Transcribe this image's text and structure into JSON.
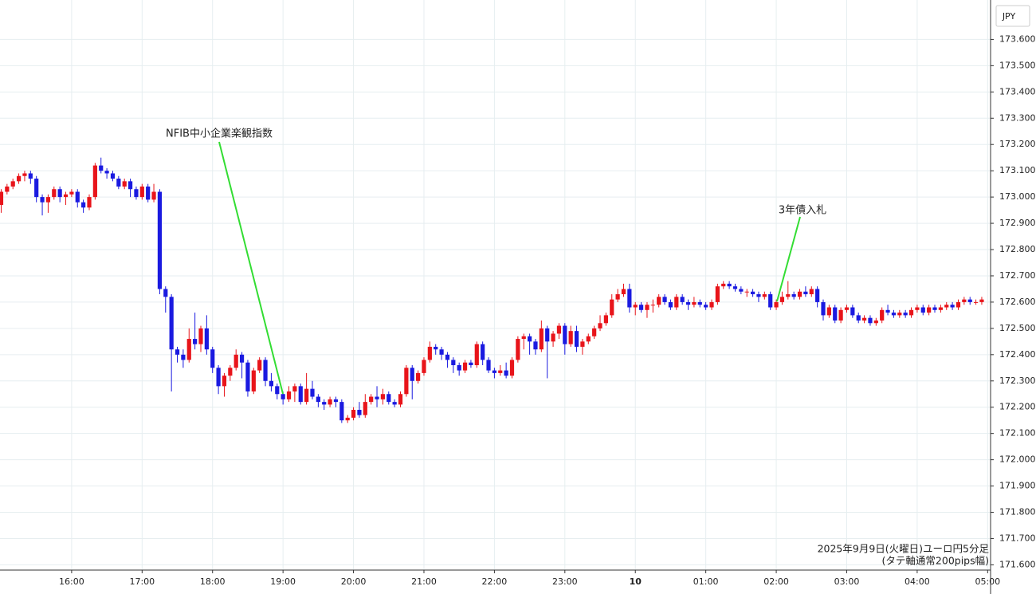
{
  "chart_data": {
    "type": "candlestick",
    "axis_unit": "JPY",
    "footer": [
      "2025年9月9日(火曜日)ユーロ円5分足",
      "(タテ軸通常200pips幅)"
    ],
    "annotations": [
      {
        "text": "NFIB中小企業楽観指数"
      },
      {
        "text": "3年債入札"
      }
    ],
    "up_color": "#e8141a",
    "down_color": "#1a1ae0",
    "annotation_color": "#33dd33",
    "grid": true,
    "ylim": [
      171.58,
      173.75
    ],
    "yticks": [
      {
        "value": 171.6,
        "label": "171.600"
      },
      {
        "value": 171.7,
        "label": "171.700"
      },
      {
        "value": 171.8,
        "label": "171.800"
      },
      {
        "value": 171.9,
        "label": "171.900"
      },
      {
        "value": 172.0,
        "label": "172.000"
      },
      {
        "value": 172.1,
        "label": "172.100"
      },
      {
        "value": 172.2,
        "label": "172.200"
      },
      {
        "value": 172.3,
        "label": "172.300"
      },
      {
        "value": 172.4,
        "label": "172.400"
      },
      {
        "value": 172.5,
        "label": "172.500"
      },
      {
        "value": 172.6,
        "label": "172.600"
      },
      {
        "value": 172.7,
        "label": "172.700"
      },
      {
        "value": 172.8,
        "label": "172.800"
      },
      {
        "value": 172.9,
        "label": "172.900"
      },
      {
        "value": 173.0,
        "label": "173.000"
      },
      {
        "value": 173.1,
        "label": "173.100"
      },
      {
        "value": 173.2,
        "label": "173.200"
      },
      {
        "value": 173.3,
        "label": "173.300"
      },
      {
        "value": 173.4,
        "label": "173.400"
      },
      {
        "value": 173.5,
        "label": "173.500"
      },
      {
        "value": 173.6,
        "label": "173.600"
      }
    ],
    "xlim": [
      -0.2,
      168.5
    ],
    "xticks": [
      {
        "value": 12,
        "label": "16:00"
      },
      {
        "value": 24,
        "label": "17:00"
      },
      {
        "value": 36,
        "label": "18:00"
      },
      {
        "value": 48,
        "label": "19:00"
      },
      {
        "value": 60,
        "label": "20:00"
      },
      {
        "value": 72,
        "label": "21:00"
      },
      {
        "value": 84,
        "label": "22:00"
      },
      {
        "value": 96,
        "label": "23:00"
      },
      {
        "value": 108,
        "label": "10"
      },
      {
        "value": 120,
        "label": "01:00"
      },
      {
        "value": 132,
        "label": "02:00"
      },
      {
        "value": 144,
        "label": "03:00"
      },
      {
        "value": 156,
        "label": "04:00"
      },
      {
        "value": 168,
        "label": "05:00"
      }
    ],
    "ohlc": [
      [
        172.97,
        173.03,
        172.94,
        173.02
      ],
      [
        173.02,
        173.05,
        173.01,
        173.04
      ],
      [
        173.04,
        173.07,
        173.03,
        173.06
      ],
      [
        173.06,
        173.09,
        173.05,
        173.08
      ],
      [
        173.08,
        173.1,
        173.06,
        173.09
      ],
      [
        173.09,
        173.1,
        173.05,
        173.07
      ],
      [
        173.07,
        173.08,
        172.98,
        173.0
      ],
      [
        173.0,
        173.01,
        172.93,
        172.98
      ],
      [
        172.98,
        173.01,
        172.94,
        173.0
      ],
      [
        173.0,
        173.04,
        172.99,
        173.03
      ],
      [
        173.03,
        173.04,
        172.98,
        173.0
      ],
      [
        173.0,
        173.02,
        172.97,
        173.01
      ],
      [
        173.01,
        173.03,
        173.0,
        173.02
      ],
      [
        173.02,
        173.03,
        172.96,
        172.98
      ],
      [
        172.98,
        172.99,
        172.94,
        172.96
      ],
      [
        172.96,
        173.01,
        172.95,
        173.0
      ],
      [
        173.0,
        173.13,
        172.99,
        173.12
      ],
      [
        173.12,
        173.15,
        173.09,
        173.1
      ],
      [
        173.1,
        173.11,
        173.07,
        173.09
      ],
      [
        173.09,
        173.1,
        173.06,
        173.07
      ],
      [
        173.07,
        173.08,
        173.03,
        173.04
      ],
      [
        173.04,
        173.07,
        173.03,
        173.06
      ],
      [
        173.06,
        173.07,
        173.0,
        173.03
      ],
      [
        173.03,
        173.04,
        172.99,
        173.0
      ],
      [
        173.0,
        173.05,
        172.99,
        173.04
      ],
      [
        173.04,
        173.05,
        172.98,
        172.99
      ],
      [
        172.99,
        173.05,
        172.98,
        173.02
      ],
      [
        173.02,
        173.03,
        172.63,
        172.65
      ],
      [
        172.65,
        172.66,
        172.56,
        172.62
      ],
      [
        172.62,
        172.63,
        172.26,
        172.42
      ],
      [
        172.42,
        172.43,
        172.37,
        172.4
      ],
      [
        172.4,
        172.42,
        172.35,
        172.38
      ],
      [
        172.38,
        172.5,
        172.37,
        172.46
      ],
      [
        172.46,
        172.56,
        172.42,
        172.44
      ],
      [
        172.44,
        172.51,
        172.41,
        172.5
      ],
      [
        172.5,
        172.55,
        172.4,
        172.42
      ],
      [
        172.42,
        172.43,
        172.33,
        172.35
      ],
      [
        172.35,
        172.36,
        172.25,
        172.28
      ],
      [
        172.28,
        172.33,
        172.24,
        172.32
      ],
      [
        172.32,
        172.36,
        172.3,
        172.35
      ],
      [
        172.35,
        172.42,
        172.34,
        172.4
      ],
      [
        172.4,
        172.41,
        172.31,
        172.37
      ],
      [
        172.37,
        172.38,
        172.24,
        172.26
      ],
      [
        172.26,
        172.35,
        172.25,
        172.34
      ],
      [
        172.34,
        172.39,
        172.33,
        172.38
      ],
      [
        172.38,
        172.39,
        172.28,
        172.3
      ],
      [
        172.3,
        172.33,
        172.26,
        172.28
      ],
      [
        172.28,
        172.29,
        172.23,
        172.25
      ],
      [
        172.25,
        172.26,
        172.21,
        172.23
      ],
      [
        172.23,
        172.28,
        172.22,
        172.26
      ],
      [
        172.26,
        172.29,
        172.22,
        172.28
      ],
      [
        172.28,
        172.29,
        172.21,
        172.22
      ],
      [
        172.22,
        172.33,
        172.21,
        172.27
      ],
      [
        172.27,
        172.3,
        172.23,
        172.24
      ],
      [
        172.24,
        172.25,
        172.2,
        172.22
      ],
      [
        172.22,
        172.23,
        172.19,
        172.21
      ],
      [
        172.21,
        172.24,
        172.2,
        172.23
      ],
      [
        172.23,
        172.24,
        172.2,
        172.22
      ],
      [
        172.22,
        172.23,
        172.14,
        172.15
      ],
      [
        172.15,
        172.17,
        172.14,
        172.16
      ],
      [
        172.16,
        172.2,
        172.15,
        172.19
      ],
      [
        172.19,
        172.22,
        172.16,
        172.17
      ],
      [
        172.17,
        172.25,
        172.16,
        172.22
      ],
      [
        172.22,
        172.25,
        172.21,
        172.24
      ],
      [
        172.24,
        172.28,
        172.2,
        172.23
      ],
      [
        172.23,
        172.27,
        172.21,
        172.25
      ],
      [
        172.25,
        172.26,
        172.21,
        172.22
      ],
      [
        172.22,
        172.23,
        172.2,
        172.21
      ],
      [
        172.21,
        172.26,
        172.2,
        172.25
      ],
      [
        172.25,
        172.36,
        172.24,
        172.35
      ],
      [
        172.35,
        172.36,
        172.23,
        172.3
      ],
      [
        172.3,
        172.34,
        172.29,
        172.33
      ],
      [
        172.33,
        172.39,
        172.32,
        172.38
      ],
      [
        172.38,
        172.45,
        172.37,
        172.43
      ],
      [
        172.43,
        172.44,
        172.4,
        172.42
      ],
      [
        172.42,
        172.43,
        172.38,
        172.4
      ],
      [
        172.4,
        172.41,
        172.35,
        172.38
      ],
      [
        172.38,
        172.39,
        172.33,
        172.36
      ],
      [
        172.36,
        172.37,
        172.32,
        172.34
      ],
      [
        172.34,
        172.38,
        172.33,
        172.37
      ],
      [
        172.37,
        172.38,
        172.35,
        172.36
      ],
      [
        172.36,
        172.45,
        172.35,
        172.44
      ],
      [
        172.44,
        172.45,
        172.36,
        172.38
      ],
      [
        172.38,
        172.39,
        172.33,
        172.34
      ],
      [
        172.34,
        172.35,
        172.31,
        172.33
      ],
      [
        172.33,
        172.36,
        172.32,
        172.34
      ],
      [
        172.34,
        172.37,
        172.31,
        172.32
      ],
      [
        172.32,
        172.39,
        172.31,
        172.38
      ],
      [
        172.38,
        172.47,
        172.37,
        172.46
      ],
      [
        172.46,
        172.48,
        172.42,
        172.47
      ],
      [
        172.47,
        172.48,
        172.4,
        172.45
      ],
      [
        172.45,
        172.46,
        172.4,
        172.42
      ],
      [
        172.42,
        172.53,
        172.41,
        172.5
      ],
      [
        172.5,
        172.51,
        172.31,
        172.45
      ],
      [
        172.45,
        172.49,
        172.43,
        172.48
      ],
      [
        172.48,
        172.52,
        172.46,
        172.51
      ],
      [
        172.51,
        172.52,
        172.4,
        172.44
      ],
      [
        172.44,
        172.51,
        172.43,
        172.49
      ],
      [
        172.49,
        172.51,
        172.41,
        172.43
      ],
      [
        172.43,
        172.46,
        172.4,
        172.45
      ],
      [
        172.45,
        172.48,
        172.44,
        172.47
      ],
      [
        172.47,
        172.51,
        172.46,
        172.5
      ],
      [
        172.5,
        172.55,
        172.49,
        172.52
      ],
      [
        172.52,
        172.56,
        172.51,
        172.55
      ],
      [
        172.55,
        172.63,
        172.54,
        172.61
      ],
      [
        172.61,
        172.65,
        172.6,
        172.63
      ],
      [
        172.63,
        172.67,
        172.62,
        172.65
      ],
      [
        172.65,
        172.67,
        172.56,
        172.58
      ],
      [
        172.58,
        172.6,
        172.55,
        172.59
      ],
      [
        172.59,
        172.6,
        172.56,
        172.57
      ],
      [
        172.57,
        172.6,
        172.54,
        172.59
      ],
      [
        172.59,
        172.61,
        172.56,
        172.59
      ],
      [
        172.59,
        172.63,
        172.58,
        172.62
      ],
      [
        172.62,
        172.63,
        172.59,
        172.6
      ],
      [
        172.6,
        172.61,
        172.57,
        172.58
      ],
      [
        172.58,
        172.63,
        172.57,
        172.62
      ],
      [
        172.62,
        172.63,
        172.59,
        172.6
      ],
      [
        172.6,
        172.61,
        172.57,
        172.59
      ],
      [
        172.59,
        172.62,
        172.58,
        172.6
      ],
      [
        172.6,
        172.61,
        172.58,
        172.59
      ],
      [
        172.59,
        172.6,
        172.57,
        172.58
      ],
      [
        172.58,
        172.61,
        172.57,
        172.6
      ],
      [
        172.6,
        172.67,
        172.59,
        172.66
      ],
      [
        172.66,
        172.68,
        172.65,
        172.67
      ],
      [
        172.67,
        172.68,
        172.65,
        172.66
      ],
      [
        172.66,
        172.67,
        172.64,
        172.65
      ],
      [
        172.65,
        172.66,
        172.63,
        172.64
      ],
      [
        172.64,
        172.65,
        172.62,
        172.64
      ],
      [
        172.64,
        172.65,
        172.62,
        172.63
      ],
      [
        172.63,
        172.64,
        172.6,
        172.62
      ],
      [
        172.62,
        172.64,
        172.61,
        172.63
      ],
      [
        172.63,
        172.64,
        172.57,
        172.58
      ],
      [
        172.58,
        172.61,
        172.57,
        172.6
      ],
      [
        172.6,
        172.64,
        172.59,
        172.62
      ],
      [
        172.62,
        172.68,
        172.61,
        172.63
      ],
      [
        172.63,
        172.64,
        172.61,
        172.62
      ],
      [
        172.62,
        172.65,
        172.61,
        172.64
      ],
      [
        172.64,
        172.66,
        172.62,
        172.63
      ],
      [
        172.63,
        172.66,
        172.62,
        172.65
      ],
      [
        172.65,
        172.66,
        172.58,
        172.6
      ],
      [
        172.6,
        172.61,
        172.53,
        172.55
      ],
      [
        172.55,
        172.59,
        172.54,
        172.58
      ],
      [
        172.58,
        172.59,
        172.52,
        172.53
      ],
      [
        172.53,
        172.58,
        172.52,
        172.57
      ],
      [
        172.57,
        172.59,
        172.56,
        172.58
      ],
      [
        172.58,
        172.59,
        172.54,
        172.55
      ],
      [
        172.55,
        172.56,
        172.52,
        172.53
      ],
      [
        172.53,
        172.55,
        172.52,
        172.54
      ],
      [
        172.54,
        172.55,
        172.51,
        172.52
      ],
      [
        172.52,
        172.54,
        172.51,
        172.53
      ],
      [
        172.53,
        172.58,
        172.52,
        172.57
      ],
      [
        172.57,
        172.59,
        172.55,
        172.56
      ],
      [
        172.56,
        172.57,
        172.54,
        172.55
      ],
      [
        172.55,
        172.57,
        172.54,
        172.56
      ],
      [
        172.56,
        172.57,
        172.54,
        172.55
      ],
      [
        172.55,
        172.58,
        172.54,
        172.57
      ],
      [
        172.57,
        172.59,
        172.56,
        172.58
      ],
      [
        172.58,
        172.59,
        172.55,
        172.56
      ],
      [
        172.56,
        172.59,
        172.55,
        172.58
      ],
      [
        172.58,
        172.59,
        172.56,
        172.57
      ],
      [
        172.57,
        172.59,
        172.56,
        172.58
      ],
      [
        172.58,
        172.6,
        172.57,
        172.59
      ],
      [
        172.59,
        172.6,
        172.57,
        172.58
      ],
      [
        172.58,
        172.61,
        172.57,
        172.6
      ],
      [
        172.6,
        172.62,
        172.59,
        172.61
      ],
      [
        172.61,
        172.62,
        172.59,
        172.6
      ],
      [
        172.6,
        172.61,
        172.59,
        172.6
      ],
      [
        172.6,
        172.62,
        172.59,
        172.61
      ]
    ]
  }
}
